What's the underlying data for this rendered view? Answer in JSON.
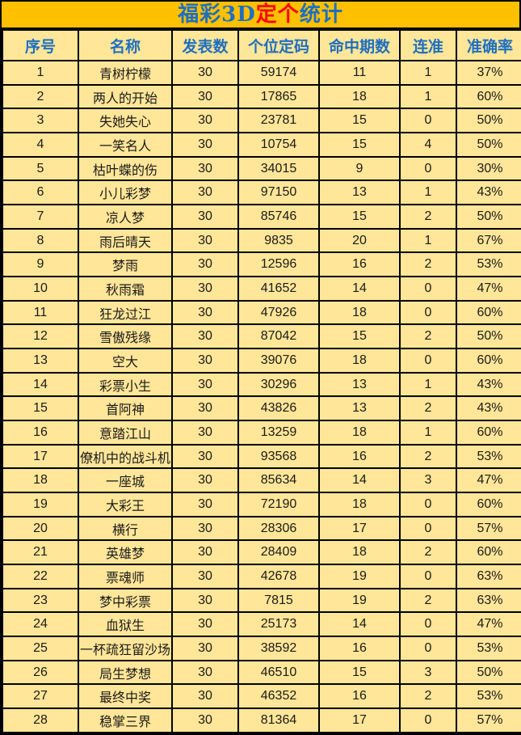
{
  "title": {
    "full": "福彩3D定个统计",
    "segments": [
      {
        "text": "福彩3D",
        "color": "#1E6FC0"
      },
      {
        "text": "定个",
        "color": "#FF0000"
      },
      {
        "text": "统计",
        "color": "#1E6FC0"
      }
    ]
  },
  "colors": {
    "title_bar_bg": "#FFC000",
    "cell_bg": "#FFE699",
    "border": "#000000",
    "header_text": "#1E6FC0",
    "data_text": "#1A1A1A"
  },
  "chart_data": {
    "type": "table",
    "title": "福彩3D定个统计",
    "columns": [
      "序号",
      "名称",
      "发表数",
      "个位定码",
      "命中期数",
      "连准",
      "准确率"
    ],
    "rows": [
      [
        "1",
        "青树柠檬",
        "30",
        "59174",
        "11",
        "1",
        "37%"
      ],
      [
        "2",
        "两人的开始",
        "30",
        "17865",
        "18",
        "1",
        "60%"
      ],
      [
        "3",
        "失她失心",
        "30",
        "23781",
        "15",
        "0",
        "50%"
      ],
      [
        "4",
        "一笑名人",
        "30",
        "10754",
        "15",
        "4",
        "50%"
      ],
      [
        "5",
        "枯叶蝶的伤",
        "30",
        "34015",
        "9",
        "0",
        "30%"
      ],
      [
        "6",
        "小儿彩梦",
        "30",
        "97150",
        "13",
        "1",
        "43%"
      ],
      [
        "7",
        "凉人梦",
        "30",
        "85746",
        "15",
        "2",
        "50%"
      ],
      [
        "8",
        "雨后晴天",
        "30",
        "9835",
        "20",
        "1",
        "67%"
      ],
      [
        "9",
        "梦雨",
        "30",
        "12596",
        "16",
        "2",
        "53%"
      ],
      [
        "10",
        "秋雨霜",
        "30",
        "41652",
        "14",
        "0",
        "47%"
      ],
      [
        "11",
        "狂龙过江",
        "30",
        "47926",
        "18",
        "0",
        "60%"
      ],
      [
        "12",
        "雪傲残缘",
        "30",
        "87042",
        "15",
        "2",
        "50%"
      ],
      [
        "13",
        "空大",
        "30",
        "39076",
        "18",
        "0",
        "60%"
      ],
      [
        "14",
        "彩票小生",
        "30",
        "30296",
        "13",
        "1",
        "43%"
      ],
      [
        "15",
        "首阿神",
        "30",
        "43826",
        "13",
        "2",
        "43%"
      ],
      [
        "16",
        "意踏江山",
        "30",
        "13259",
        "18",
        "1",
        "60%"
      ],
      [
        "17",
        "僚机中的战斗机",
        "30",
        "93568",
        "16",
        "2",
        "53%"
      ],
      [
        "18",
        "一座城",
        "30",
        "85634",
        "14",
        "3",
        "47%"
      ],
      [
        "19",
        "大彩王",
        "30",
        "72190",
        "18",
        "0",
        "60%"
      ],
      [
        "20",
        "横行",
        "30",
        "28306",
        "17",
        "0",
        "57%"
      ],
      [
        "21",
        "英雄梦",
        "30",
        "28409",
        "18",
        "2",
        "60%"
      ],
      [
        "22",
        "票魂师",
        "30",
        "42678",
        "19",
        "0",
        "63%"
      ],
      [
        "23",
        "梦中彩票",
        "30",
        "7815",
        "19",
        "2",
        "63%"
      ],
      [
        "24",
        "血狱生",
        "30",
        "25173",
        "14",
        "0",
        "47%"
      ],
      [
        "25",
        "一杯疏狂留沙场",
        "30",
        "38592",
        "16",
        "0",
        "53%"
      ],
      [
        "26",
        "局生梦想",
        "30",
        "46510",
        "15",
        "3",
        "50%"
      ],
      [
        "27",
        "最终中奖",
        "30",
        "46352",
        "16",
        "2",
        "53%"
      ],
      [
        "28",
        "稳掌三界",
        "30",
        "81364",
        "17",
        "0",
        "57%"
      ]
    ]
  }
}
